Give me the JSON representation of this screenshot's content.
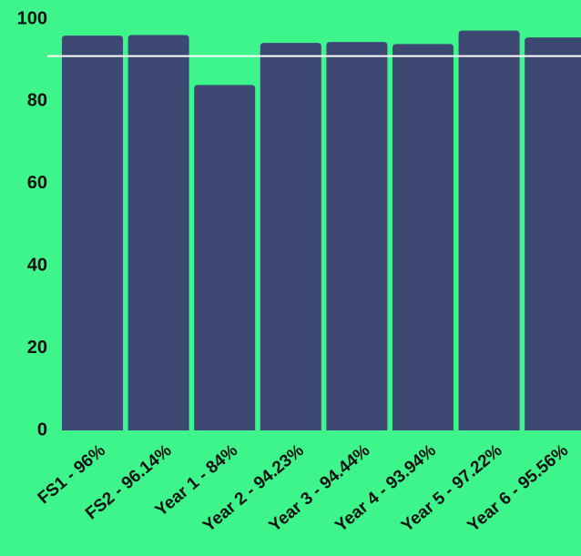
{
  "chart_data": {
    "type": "bar",
    "categories": [
      "FS1 - 96%",
      "FS2 - 96.14%",
      "Year 1 - 84%",
      "Year 2 - 94.23%",
      "Year 3 - 94.44%",
      "Year 4 - 93.94%",
      "Year 5 - 97.22%",
      "Year 6 - 95.56%"
    ],
    "values": [
      96,
      96.14,
      84,
      94.23,
      94.44,
      93.94,
      97.22,
      95.56
    ],
    "color": "#3d4873",
    "ylim": [
      0,
      100
    ],
    "yticks": [
      0,
      20,
      40,
      60,
      80,
      100
    ],
    "reference_line": 91,
    "reference_color": "#ffffff",
    "grid": false
  }
}
